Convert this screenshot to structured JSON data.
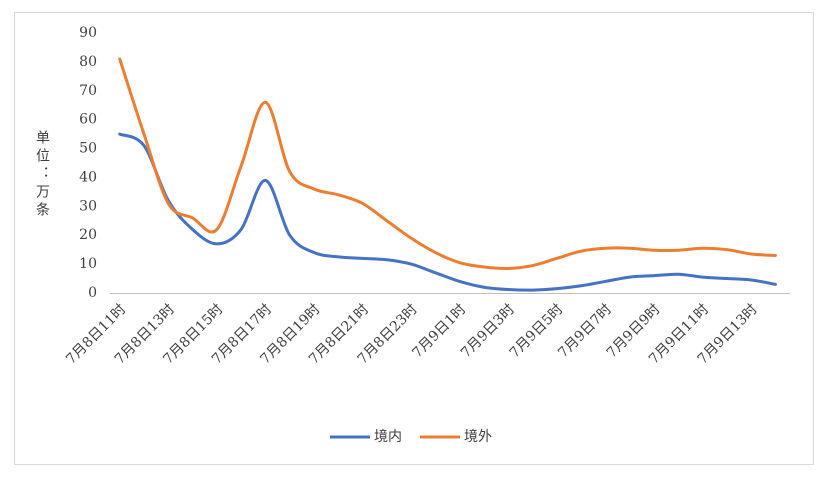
{
  "chart_data": {
    "type": "line",
    "y_label": "单位：万条",
    "categories": [
      "7月8日11时",
      null,
      "7月8日13时",
      null,
      "7月8日15时",
      null,
      "7月8日17时",
      null,
      "7月8日19时",
      null,
      "7月8日21时",
      null,
      "7月8日23时",
      null,
      "7月9日1时",
      null,
      "7月9日3时",
      null,
      "7月9日5时",
      null,
      "7月9日7时",
      null,
      "7月9日9时",
      null,
      "7月9日11时",
      null,
      "7月9日13时",
      null
    ],
    "series": [
      {
        "name": "境内",
        "color": "#4472c4",
        "values": [
          55,
          51,
          32,
          22,
          17,
          22,
          39,
          20,
          14,
          12.5,
          12,
          11.5,
          10,
          7,
          4,
          2,
          1.2,
          1,
          1.5,
          2.5,
          4,
          5.5,
          6,
          6.5,
          5.5,
          5,
          4.5,
          3
        ]
      },
      {
        "name": "境外",
        "color": "#ed7d31",
        "values": [
          81,
          55,
          31,
          26,
          22,
          44,
          66,
          42,
          36,
          34,
          31,
          25,
          19,
          14,
          10.5,
          9,
          8.5,
          9.5,
          12,
          14.5,
          15.5,
          15.5,
          14.8,
          14.8,
          15.5,
          15,
          13.5,
          13
        ]
      }
    ],
    "ylim": [
      0,
      90
    ],
    "yticks": [
      0,
      10,
      20,
      30,
      40,
      50,
      60,
      70,
      80,
      90
    ],
    "grid": false,
    "legend": "bottom"
  }
}
